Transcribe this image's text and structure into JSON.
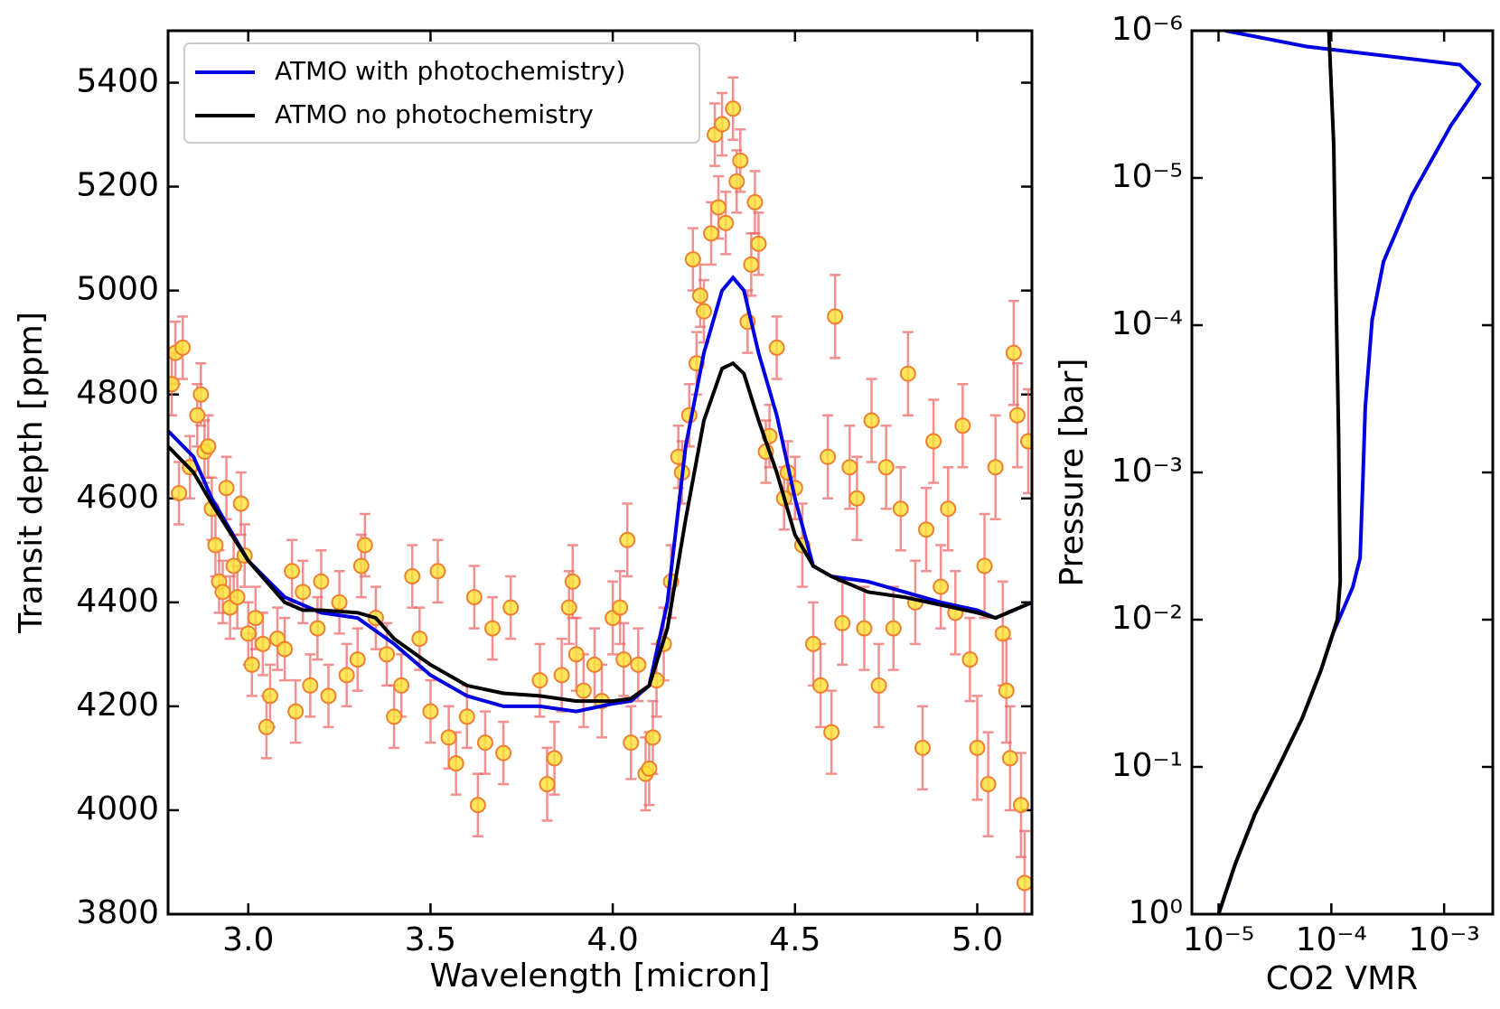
{
  "chart_data": [
    {
      "type": "scatter",
      "xlabel": "Wavelength [micron]",
      "ylabel": "Transit depth [ppm]",
      "xlim": [
        2.78,
        5.15
      ],
      "ylim": [
        3800,
        5500
      ],
      "xticks": [
        {
          "value": 3,
          "label": "3.0"
        },
        3.5,
        {
          "value": 4,
          "label": "4.0"
        },
        4.5,
        {
          "value": 5,
          "label": "5.0"
        }
      ],
      "yticks": [
        3800,
        4000,
        4200,
        4400,
        4600,
        4800,
        5000,
        5200,
        5400
      ],
      "legend": "upper left",
      "point_color": "#ffe135",
      "point_edge": "#f08030",
      "error_color": "#f06060",
      "x": [
        2.79,
        2.8,
        2.81,
        2.82,
        2.84,
        2.86,
        2.87,
        2.88,
        2.89,
        2.9,
        2.91,
        2.92,
        2.93,
        2.94,
        2.95,
        2.96,
        2.97,
        2.98,
        2.99,
        3.0,
        3.01,
        3.02,
        3.04,
        3.05,
        3.06,
        3.08,
        3.1,
        3.12,
        3.13,
        3.15,
        3.17,
        3.19,
        3.2,
        3.22,
        3.25,
        3.27,
        3.3,
        3.31,
        3.32,
        3.35,
        3.38,
        3.4,
        3.42,
        3.45,
        3.47,
        3.5,
        3.52,
        3.55,
        3.57,
        3.6,
        3.62,
        3.63,
        3.65,
        3.67,
        3.7,
        3.72,
        3.8,
        3.82,
        3.84,
        3.86,
        3.88,
        3.89,
        3.9,
        3.92,
        3.95,
        3.97,
        4.0,
        4.02,
        4.03,
        4.04,
        4.05,
        4.07,
        4.09,
        4.1,
        4.11,
        4.12,
        4.14,
        4.16,
        4.18,
        4.19,
        4.21,
        4.22,
        4.23,
        4.24,
        4.25,
        4.27,
        4.28,
        4.29,
        4.3,
        4.31,
        4.33,
        4.34,
        4.35,
        4.37,
        4.38,
        4.39,
        4.4,
        4.42,
        4.43,
        4.45,
        4.47,
        4.48,
        4.5,
        4.52,
        4.55,
        4.57,
        4.59,
        4.6,
        4.61,
        4.63,
        4.65,
        4.67,
        4.69,
        4.71,
        4.73,
        4.75,
        4.77,
        4.79,
        4.81,
        4.83,
        4.85,
        4.86,
        4.88,
        4.9,
        4.92,
        4.94,
        4.96,
        4.98,
        5.0,
        5.02,
        5.03,
        5.05,
        5.07,
        5.08,
        5.09,
        5.1,
        5.11,
        5.12,
        5.13,
        5.14
      ],
      "values": [
        4820,
        4880,
        4610,
        4890,
        4660,
        4760,
        4800,
        4690,
        4700,
        4580,
        4510,
        4440,
        4420,
        4620,
        4390,
        4470,
        4410,
        4590,
        4490,
        4340,
        4280,
        4370,
        4320,
        4160,
        4220,
        4330,
        4310,
        4460,
        4190,
        4420,
        4240,
        4350,
        4440,
        4220,
        4400,
        4260,
        4290,
        4470,
        4510,
        4370,
        4300,
        4180,
        4240,
        4450,
        4330,
        4190,
        4460,
        4140,
        4090,
        4180,
        4410,
        4010,
        4130,
        4350,
        4110,
        4390,
        4250,
        4050,
        4100,
        4260,
        4390,
        4440,
        4300,
        4230,
        4280,
        4210,
        4370,
        4390,
        4290,
        4520,
        4130,
        4280,
        4070,
        4080,
        4140,
        4250,
        4320,
        4440,
        4680,
        4650,
        4760,
        5060,
        4860,
        4990,
        4960,
        5110,
        5300,
        5160,
        5320,
        5130,
        5350,
        5210,
        5250,
        4940,
        5050,
        5170,
        5090,
        4690,
        4720,
        4890,
        4600,
        4650,
        4620,
        4510,
        4320,
        4240,
        4680,
        4150,
        4950,
        4360,
        4660,
        4600,
        4350,
        4750,
        4240,
        4660,
        4350,
        4580,
        4840,
        4400,
        4120,
        4540,
        4710,
        4430,
        4580,
        4380,
        4740,
        4290,
        4120,
        4470,
        4050,
        4660,
        4340,
        4230,
        4100,
        4880,
        4760,
        4010,
        3860,
        4710
      ],
      "errors": [
        60,
        60,
        60,
        60,
        60,
        60,
        60,
        60,
        60,
        60,
        60,
        60,
        60,
        60,
        60,
        60,
        60,
        60,
        60,
        60,
        60,
        60,
        60,
        60,
        60,
        60,
        60,
        60,
        60,
        60,
        60,
        60,
        60,
        60,
        60,
        60,
        60,
        60,
        60,
        60,
        60,
        60,
        60,
        60,
        60,
        60,
        60,
        60,
        60,
        60,
        60,
        60,
        60,
        60,
        60,
        60,
        70,
        70,
        70,
        70,
        70,
        70,
        70,
        70,
        70,
        70,
        70,
        70,
        70,
        70,
        70,
        70,
        70,
        70,
        70,
        70,
        70,
        70,
        60,
        60,
        60,
        60,
        60,
        60,
        60,
        60,
        60,
        60,
        60,
        60,
        60,
        60,
        60,
        60,
        60,
        60,
        60,
        60,
        60,
        60,
        60,
        60,
        60,
        80,
        80,
        80,
        80,
        80,
        80,
        80,
        80,
        80,
        80,
        80,
        80,
        80,
        80,
        80,
        80,
        80,
        80,
        80,
        80,
        80,
        80,
        80,
        80,
        80,
        100,
        100,
        100,
        100,
        100,
        100,
        100,
        100,
        100,
        100,
        100,
        100
      ],
      "series": [
        {
          "name": "ATMO with photochemistry)",
          "color": "#0000e0",
          "x": [
            2.78,
            2.85,
            2.9,
            3.0,
            3.1,
            3.2,
            3.3,
            3.4,
            3.5,
            3.6,
            3.7,
            3.8,
            3.9,
            4.0,
            4.05,
            4.1,
            4.15,
            4.2,
            4.25,
            4.3,
            4.33,
            4.36,
            4.4,
            4.45,
            4.5,
            4.55,
            4.6,
            4.7,
            4.8,
            4.9,
            5.0,
            5.05,
            5.1,
            5.15
          ],
          "values": [
            4730,
            4680,
            4600,
            4480,
            4410,
            4380,
            4370,
            4320,
            4260,
            4220,
            4200,
            4200,
            4190,
            4205,
            4210,
            4240,
            4400,
            4700,
            4880,
            5000,
            5025,
            5000,
            4880,
            4760,
            4600,
            4470,
            4450,
            4440,
            4420,
            4400,
            4385,
            4370,
            4385,
            4400
          ]
        },
        {
          "name": "ATMO no photochemistry",
          "color": "#000000",
          "x": [
            2.78,
            2.85,
            2.9,
            3.0,
            3.1,
            3.15,
            3.2,
            3.3,
            3.35,
            3.4,
            3.5,
            3.6,
            3.7,
            3.8,
            3.9,
            4.0,
            4.05,
            4.1,
            4.15,
            4.2,
            4.25,
            4.3,
            4.33,
            4.36,
            4.4,
            4.45,
            4.5,
            4.55,
            4.6,
            4.7,
            4.8,
            4.9,
            5.0,
            5.05,
            5.1,
            5.15
          ],
          "values": [
            4700,
            4650,
            4590,
            4480,
            4400,
            4385,
            4385,
            4380,
            4370,
            4330,
            4280,
            4240,
            4225,
            4220,
            4210,
            4210,
            4215,
            4240,
            4350,
            4560,
            4750,
            4850,
            4860,
            4840,
            4750,
            4650,
            4530,
            4470,
            4450,
            4420,
            4410,
            4395,
            4380,
            4370,
            4385,
            4400
          ]
        }
      ]
    },
    {
      "type": "line",
      "xlabel": "CO2 VMR",
      "ylabel": "Pressure [bar]",
      "xscale": "log",
      "yscale": "log",
      "xlim": [
        5.8e-06,
        0.0027
      ],
      "ylim": [
        1,
        1e-06
      ],
      "xticks": [
        {
          "value": 1e-05,
          "label": "10⁻⁵"
        },
        {
          "value": 0.0001,
          "label": "10⁻⁴"
        },
        {
          "value": 0.001,
          "label": "10⁻³"
        }
      ],
      "yticks": [
        {
          "value": 1,
          "label": "10⁰"
        },
        {
          "value": 0.1,
          "label": "10⁻¹"
        },
        {
          "value": 0.01,
          "label": "10⁻²"
        },
        {
          "value": 0.001,
          "label": "10⁻³"
        },
        {
          "value": 0.0001,
          "label": "10⁻⁴"
        },
        {
          "value": 1e-05,
          "label": "10⁻⁵"
        },
        {
          "value": 1e-06,
          "label": "10⁻⁶"
        }
      ],
      "series": [
        {
          "color": "#0000e0",
          "x": [
            1.15e-05,
            6e-05,
            0.00138,
            0.00205,
            0.00115,
            0.00052,
            0.00029,
            0.00023,
            0.0002,
            0.00019,
            0.00018,
            0.000155,
            0.00012,
            0.000105,
            8.1e-05,
            5.5e-05,
            3.4e-05,
            2.1e-05,
            1.4e-05,
            1e-05
          ],
          "values": [
            1e-06,
            1.28e-06,
            1.7e-06,
            2.3e-06,
            4.4e-06,
            1.3e-05,
            3.7e-05,
            9.2e-05,
            0.00036,
            0.0012,
            0.0038,
            0.006,
            0.0095,
            0.012,
            0.022,
            0.047,
            0.1,
            0.21,
            0.46,
            1
          ]
        },
        {
          "color": "#000000",
          "x": [
            9.5e-05,
            0.000105,
            0.00011,
            0.000116,
            0.00012,
            0.000113,
            8.1e-05,
            5.5e-05,
            3.4e-05,
            2.1e-05,
            1.4e-05,
            1e-05
          ],
          "values": [
            1e-06,
            6e-06,
            5.9e-05,
            0.00057,
            0.0055,
            0.01,
            0.022,
            0.047,
            0.1,
            0.21,
            0.46,
            1
          ]
        }
      ]
    }
  ]
}
